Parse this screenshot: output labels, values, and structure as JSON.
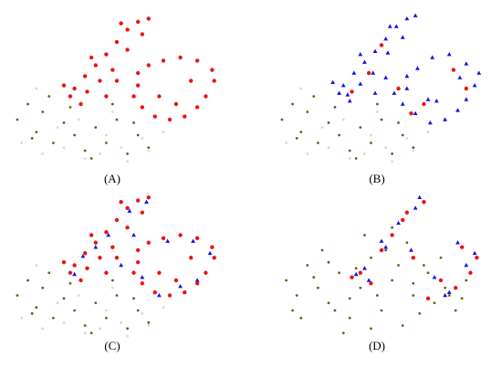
{
  "chart_data": [
    {
      "type": "scatter",
      "label": "(A)",
      "xlim": [
        0,
        100
      ],
      "ylim": [
        0,
        100
      ],
      "series": [
        {
          "color": "#d8d8d8",
          "marker": "circle",
          "x": [
            5,
            15,
            25,
            35,
            45,
            55,
            65,
            22,
            42,
            62,
            32,
            52,
            12,
            72,
            48
          ],
          "y": [
            15,
            8,
            12,
            5,
            20,
            3,
            10,
            25,
            8,
            18,
            30,
            12,
            50,
            22,
            35
          ]
        },
        {
          "color": "#6b5e0e",
          "marker": "circle",
          "x": [
            3,
            8,
            12,
            15,
            20,
            25,
            30,
            35,
            40,
            45,
            50,
            55,
            60,
            65,
            18,
            28,
            38,
            48,
            10,
            58
          ],
          "y": [
            30,
            40,
            22,
            35,
            15,
            28,
            20,
            10,
            25,
            15,
            30,
            8,
            20,
            12,
            45,
            38,
            5,
            40,
            18,
            28
          ]
        },
        {
          "color": "#ee1111",
          "marker": "circle",
          "x": [
            30,
            35,
            40,
            45,
            50,
            55,
            60,
            65,
            62,
            55,
            48,
            42,
            36,
            28,
            33,
            45,
            50,
            60,
            65,
            72,
            80,
            88,
            95,
            96,
            92,
            88,
            82,
            75,
            68,
            62,
            58,
            60,
            85,
            78,
            70,
            52,
            38,
            25
          ],
          "y": [
            50,
            58,
            65,
            72,
            80,
            88,
            93,
            95,
            85,
            75,
            62,
            55,
            48,
            45,
            40,
            45,
            55,
            60,
            65,
            68,
            70,
            68,
            62,
            55,
            45,
            38,
            32,
            30,
            32,
            38,
            45,
            52,
            55,
            40,
            45,
            92,
            70,
            52
          ]
        }
      ]
    },
    {
      "type": "scatter",
      "label": "(B)",
      "xlim": [
        0,
        100
      ],
      "ylim": [
        0,
        100
      ],
      "series": [
        {
          "color": "#d8d8d8",
          "marker": "circle",
          "x": [
            5,
            15,
            25,
            35,
            45,
            55,
            65,
            22,
            42,
            62,
            32,
            52,
            12,
            72,
            48
          ],
          "y": [
            15,
            8,
            12,
            5,
            20,
            3,
            10,
            25,
            8,
            18,
            30,
            12,
            50,
            22,
            35
          ]
        },
        {
          "color": "#6b5e0e",
          "marker": "circle",
          "x": [
            3,
            8,
            12,
            15,
            20,
            25,
            30,
            35,
            40,
            45,
            50,
            55,
            60,
            65,
            18,
            28,
            38,
            48,
            10,
            58
          ],
          "y": [
            30,
            40,
            22,
            35,
            15,
            28,
            20,
            10,
            25,
            15,
            30,
            8,
            20,
            12,
            45,
            38,
            5,
            40,
            18,
            28
          ]
        },
        {
          "color": "#ee1111",
          "marker": "circle",
          "x": [
            36,
            44,
            58,
            70,
            84,
            90,
            64,
            50
          ],
          "y": [
            48,
            60,
            50,
            40,
            62,
            50,
            34,
            78
          ]
        },
        {
          "color": "#1111ee",
          "marker": "triangle",
          "x": [
            32,
            37,
            42,
            47,
            52,
            57,
            62,
            66,
            60,
            53,
            46,
            40,
            34,
            30,
            35,
            47,
            52,
            62,
            67,
            74,
            82,
            90,
            96,
            94,
            90,
            86,
            80,
            73,
            66,
            60,
            56,
            62,
            87,
            76,
            72,
            54,
            40,
            27
          ],
          "y": [
            52,
            60,
            67,
            74,
            82,
            90,
            95,
            97,
            83,
            73,
            60,
            53,
            46,
            47,
            42,
            47,
            57,
            58,
            63,
            70,
            72,
            66,
            60,
            52,
            43,
            36,
            30,
            28,
            34,
            40,
            47,
            50,
            57,
            42,
            43,
            90,
            72,
            54
          ]
        }
      ]
    },
    {
      "type": "scatter",
      "label": "(C)",
      "xlim": [
        0,
        100
      ],
      "ylim": [
        0,
        100
      ],
      "series": [
        {
          "color": "#d8d8d8",
          "marker": "circle",
          "x": [
            5,
            15,
            25,
            35,
            45,
            55,
            65,
            22,
            42,
            62,
            32,
            52,
            12,
            72,
            48
          ],
          "y": [
            15,
            8,
            12,
            5,
            20,
            3,
            10,
            25,
            8,
            18,
            30,
            12,
            50,
            22,
            35
          ]
        },
        {
          "color": "#6b5e0e",
          "marker": "circle",
          "x": [
            3,
            8,
            12,
            15,
            20,
            25,
            30,
            35,
            40,
            45,
            50,
            55,
            60,
            65,
            18,
            28,
            38,
            48,
            10,
            58
          ],
          "y": [
            30,
            40,
            22,
            35,
            15,
            28,
            20,
            10,
            25,
            15,
            30,
            8,
            20,
            12,
            45,
            38,
            5,
            40,
            18,
            28
          ]
        },
        {
          "color": "#1111ee",
          "marker": "triangle",
          "x": [
            34,
            46,
            56,
            64,
            58,
            74,
            86,
            94,
            88,
            70,
            40,
            30,
            52,
            80,
            62
          ],
          "y": [
            56,
            70,
            86,
            92,
            70,
            66,
            66,
            58,
            40,
            30,
            62,
            44,
            50,
            36,
            42
          ]
        },
        {
          "color": "#ee1111",
          "marker": "circle",
          "x": [
            30,
            35,
            40,
            45,
            50,
            55,
            60,
            65,
            62,
            55,
            48,
            42,
            36,
            28,
            33,
            45,
            50,
            60,
            65,
            72,
            80,
            88,
            95,
            96,
            92,
            88,
            82,
            75,
            68,
            62,
            58,
            60,
            85,
            78,
            70,
            52,
            38,
            25
          ],
          "y": [
            50,
            58,
            65,
            72,
            80,
            88,
            93,
            95,
            85,
            75,
            62,
            55,
            48,
            45,
            40,
            45,
            55,
            60,
            65,
            68,
            70,
            68,
            62,
            55,
            45,
            38,
            32,
            30,
            32,
            38,
            45,
            52,
            55,
            40,
            45,
            92,
            70,
            52
          ]
        }
      ]
    },
    {
      "type": "scatter",
      "label": "(D)",
      "xlim": [
        0,
        100
      ],
      "ylim": [
        0,
        100
      ],
      "series": [
        {
          "color": "#6b5e0e",
          "marker": "circle",
          "x": [
            5,
            10,
            15,
            20,
            25,
            30,
            35,
            40,
            45,
            50,
            55,
            60,
            65,
            70,
            75,
            80,
            85,
            90,
            12,
            22,
            32,
            42,
            52,
            62,
            72,
            82,
            18,
            28,
            38,
            48,
            58,
            68,
            78,
            88,
            8,
            45,
            55,
            35,
            65,
            25
          ],
          "y": [
            40,
            30,
            50,
            35,
            25,
            45,
            15,
            35,
            55,
            20,
            40,
            10,
            30,
            50,
            25,
            35,
            20,
            40,
            15,
            60,
            5,
            70,
            60,
            65,
            45,
            30,
            42,
            20,
            48,
            30,
            50,
            18,
            55,
            28,
            20,
            8,
            75,
            28,
            38,
            52
          ]
        },
        {
          "color": "#ee1111",
          "marker": "circle",
          "x": [
            40,
            50,
            60,
            70,
            78,
            85,
            92,
            65,
            55,
            45,
            72,
            88,
            36,
            62,
            95
          ],
          "y": [
            45,
            60,
            80,
            92,
            40,
            35,
            45,
            55,
            70,
            38,
            28,
            62,
            42,
            85,
            55
          ]
        },
        {
          "color": "#1111ee",
          "marker": "triangle",
          "x": [
            42,
            52,
            58,
            68,
            75,
            82,
            90,
            64,
            50,
            44,
            80,
            94,
            38,
            66,
            86
          ],
          "y": [
            48,
            62,
            78,
            95,
            42,
            32,
            50,
            60,
            66,
            40,
            30,
            58,
            44,
            88,
            65
          ]
        }
      ]
    }
  ]
}
